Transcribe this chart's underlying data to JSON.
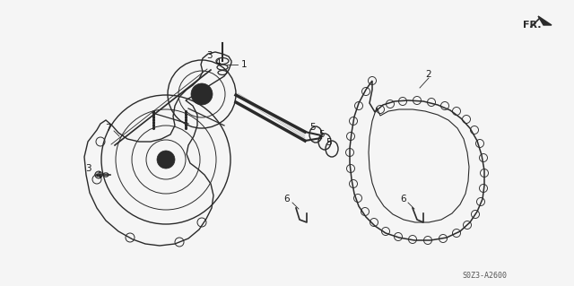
{
  "background_color": "#f5f5f5",
  "figsize": [
    6.4,
    3.19
  ],
  "dpi": 100,
  "part_code": "S0Z3-A2600",
  "line_color": "#2a2a2a",
  "label_color": "#1a1a1a"
}
